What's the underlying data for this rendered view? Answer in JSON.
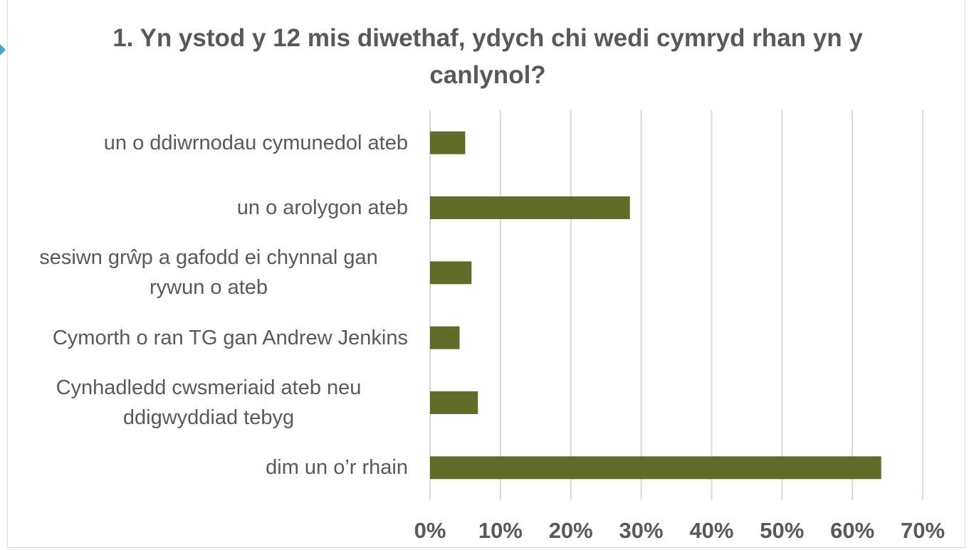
{
  "chart_data": {
    "type": "bar",
    "orientation": "horizontal",
    "title": "1. Yn ystod y 12 mis diwethaf, ydych chi wedi cymryd rhan yn y canlynol?",
    "categories": [
      "un o ddiwrnodau cymunedol ateb",
      "un o arolygon ateb",
      "sesiwn grŵp a gafodd ei chynnal gan rywun o ateb",
      "Cymorth o ran TG gan Andrew Jenkins",
      "Cynhadledd cwsmeriaid ateb neu ddigwyddiad tebyg",
      "dim un o’r rhain"
    ],
    "values": [
      5,
      28.4,
      5.9,
      4.2,
      6.8,
      64.1
    ],
    "color": "#636b2a",
    "xlim": [
      0,
      70
    ],
    "xticks": [
      {
        "value": 0,
        "label": "0%"
      },
      {
        "value": 10,
        "label": "10%"
      },
      {
        "value": 20,
        "label": "20%"
      },
      {
        "value": 30,
        "label": "30%"
      },
      {
        "value": 40,
        "label": "40%"
      },
      {
        "value": 50,
        "label": "50%"
      },
      {
        "value": 60,
        "label": "60%"
      },
      {
        "value": 70,
        "label": "70%"
      }
    ],
    "grid": true
  }
}
